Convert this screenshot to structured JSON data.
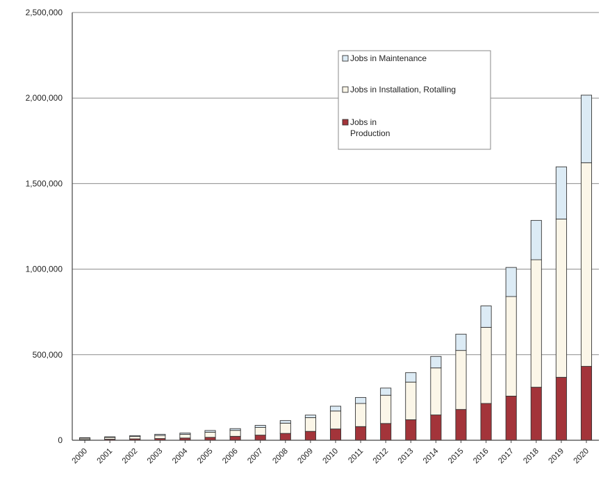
{
  "chart_data": {
    "type": "bar",
    "stacked": true,
    "categories": [
      "2000",
      "2001",
      "2002",
      "2003",
      "2004",
      "2005",
      "2006",
      "2007",
      "2008",
      "2009",
      "2010",
      "2011",
      "2012",
      "2013",
      "2014",
      "2015",
      "2016",
      "2017",
      "2018",
      "2019",
      "2020"
    ],
    "series": [
      {
        "name": "Jobs in Production",
        "color": "#a3343a",
        "values": [
          4000,
          6000,
          8000,
          10000,
          13000,
          17000,
          23000,
          30000,
          40000,
          52000,
          66000,
          80000,
          98000,
          120000,
          148000,
          180000,
          215000,
          258000,
          310000,
          368000,
          432000
        ]
      },
      {
        "name": "Jobs in Installation, Rotalling",
        "color": "#fbf6e8",
        "values": [
          8000,
          11000,
          14000,
          18000,
          22000,
          30000,
          35000,
          45000,
          60000,
          80000,
          105000,
          135000,
          165000,
          220000,
          275000,
          345000,
          445000,
          582000,
          745000,
          925000,
          1190000
        ]
      },
      {
        "name": "Jobs in Maintenance",
        "color": "#dcebf5",
        "values": [
          3000,
          3000,
          5000,
          7000,
          7000,
          10000,
          10000,
          12000,
          15000,
          15000,
          28000,
          35000,
          42000,
          55000,
          67000,
          95000,
          125000,
          170000,
          230000,
          305000,
          395000
        ]
      }
    ],
    "legend": {
      "position": "top-right",
      "entries": [
        "Jobs in Maintenance",
        "Jobs in Installation, Rotalling",
        "Jobs in\nProduction"
      ]
    },
    "ylim": [
      0,
      2500000
    ],
    "yticks": [
      "0",
      "500,000",
      "1,000,000",
      "1,500,000",
      "2,000,000",
      "2,500,000"
    ],
    "grid": true,
    "xlabel": "",
    "ylabel": "",
    "title": ""
  }
}
